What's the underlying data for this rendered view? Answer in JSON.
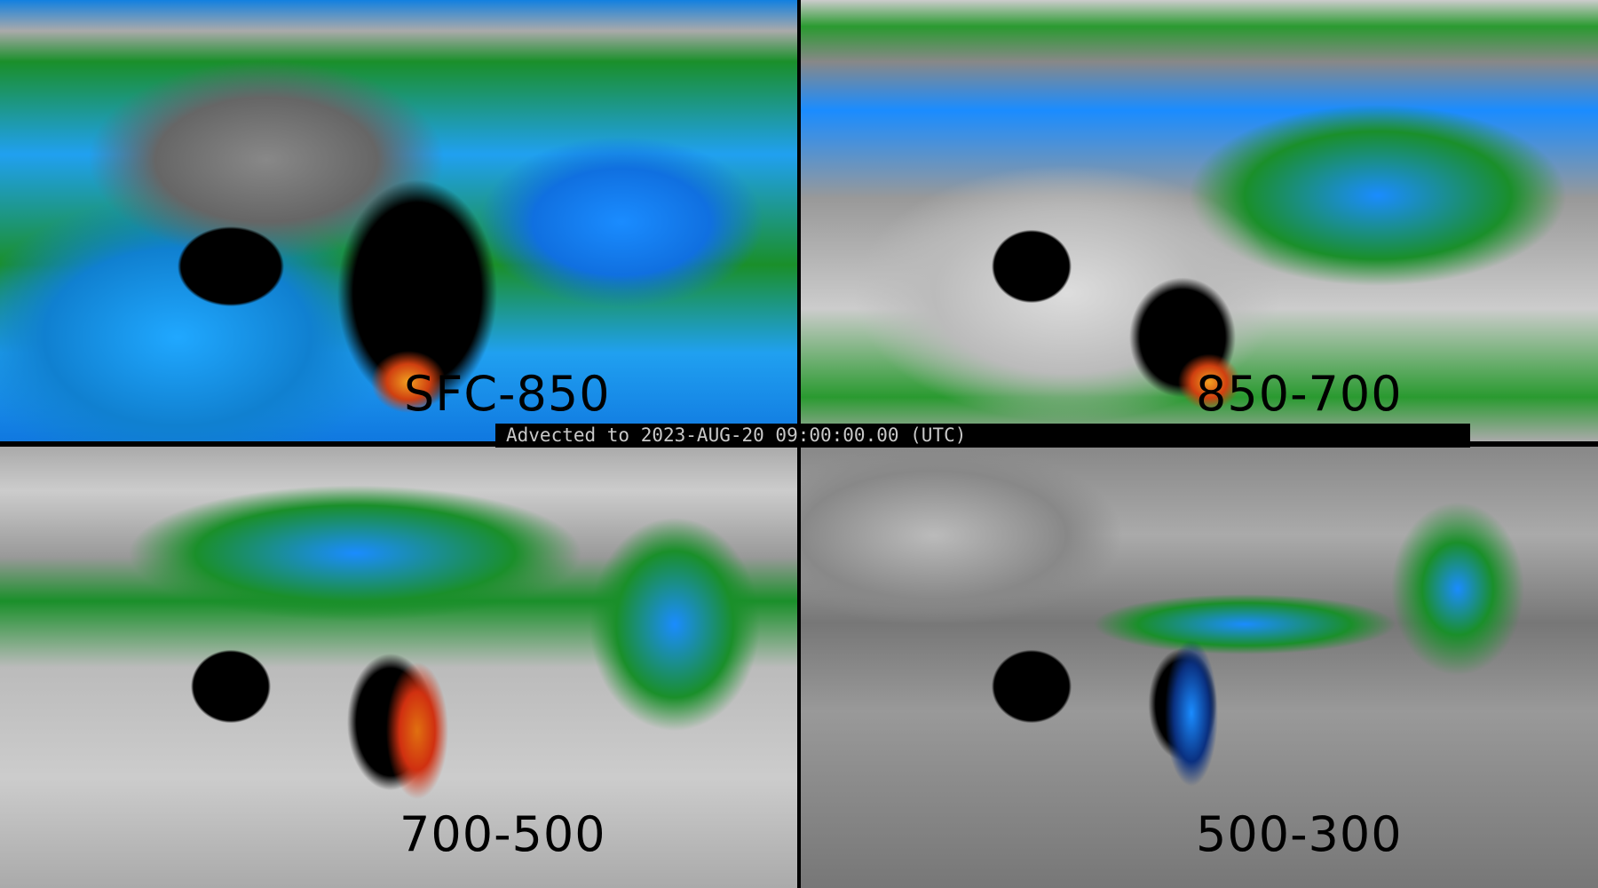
{
  "panels": [
    {
      "layer_label": "SFC-850"
    },
    {
      "layer_label": "850-700"
    },
    {
      "layer_label": "700-500"
    },
    {
      "layer_label": "500-300"
    }
  ],
  "banner": {
    "text": "Advected to 2023-AUG-20 09:00:00.00 (UTC)"
  },
  "colors": {
    "low": "#888888",
    "green": "#1a8f2a",
    "blue": "#1a8cff",
    "purple": "#a020c0",
    "high": "#f0a020",
    "no_data": "#000000"
  }
}
